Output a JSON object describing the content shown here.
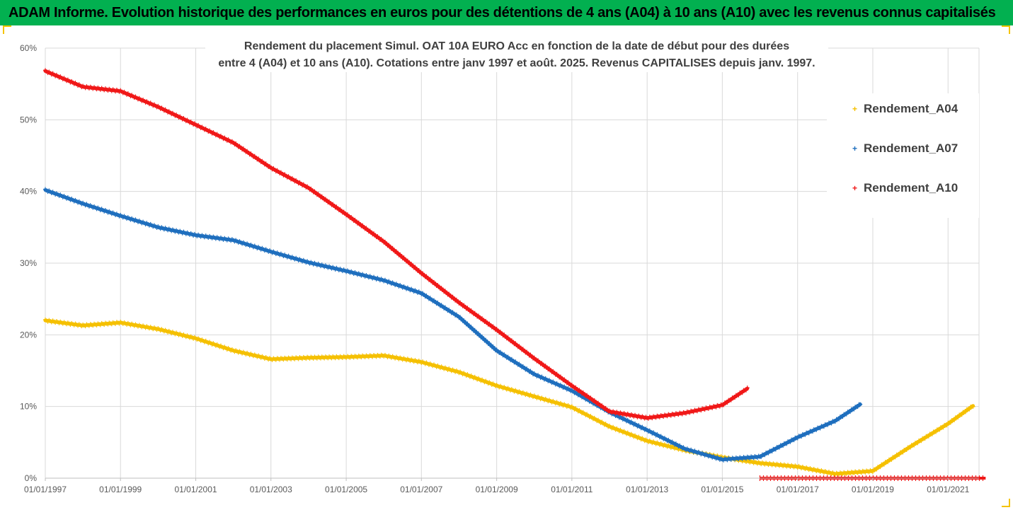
{
  "header": {
    "title": "ADAM Informe. Evolution historique des performances en euros pour des détentions de 4 ans (A04) à 10 ans (A10) avec les revenus connus capitalisés"
  },
  "colors": {
    "header_bg": "#02B050",
    "frame_accent": "#F5C400",
    "A04": "#F5C000",
    "A07": "#1F6FBE",
    "A10": "#F01818",
    "grid": "#D9D9D9"
  },
  "chart_data": {
    "type": "scatter",
    "title_line1": "Rendement du placement Simul. OAT 10A EURO Acc en fonction de la date de début pour des durées",
    "title_line2": "entre 4 (A04) et 10 ans (A10). Cotations entre janv 1997 et août. 2025. Revenus CAPITALISES depuis janv. 1997.",
    "xlabel": "",
    "ylabel": "",
    "x_range": [
      "1997-01-01",
      "2022-01-01"
    ],
    "ylim": [
      0,
      60
    ],
    "y_unit": "%",
    "y_ticks": [
      "0%",
      "10%",
      "20%",
      "30%",
      "40%",
      "50%",
      "60%"
    ],
    "x_ticks": [
      "01/01/1997",
      "01/01/1999",
      "01/01/2001",
      "01/01/2003",
      "01/01/2005",
      "01/01/2007",
      "01/01/2009",
      "01/01/2011",
      "01/01/2013",
      "01/01/2015",
      "01/01/2017",
      "01/01/2019",
      "01/01/2021"
    ],
    "grid": true,
    "legend_position": "right",
    "marker": "+",
    "series": [
      {
        "name": "Rendement_A04",
        "color_key": "A04",
        "points": [
          [
            "1997-01-01",
            22.0
          ],
          [
            "1998-01-01",
            21.3
          ],
          [
            "1999-01-01",
            21.7
          ],
          [
            "2000-01-01",
            20.8
          ],
          [
            "2001-01-01",
            19.5
          ],
          [
            "2002-01-01",
            17.8
          ],
          [
            "2003-01-01",
            16.6
          ],
          [
            "2004-01-01",
            16.8
          ],
          [
            "2005-01-01",
            16.9
          ],
          [
            "2006-01-01",
            17.1
          ],
          [
            "2007-01-01",
            16.2
          ],
          [
            "2008-01-01",
            14.8
          ],
          [
            "2009-01-01",
            12.9
          ],
          [
            "2010-01-01",
            11.4
          ],
          [
            "2011-01-01",
            9.9
          ],
          [
            "2012-01-01",
            7.2
          ],
          [
            "2013-01-01",
            5.2
          ],
          [
            "2014-01-01",
            3.9
          ],
          [
            "2015-01-01",
            2.9
          ],
          [
            "2016-01-01",
            2.1
          ],
          [
            "2017-01-01",
            1.6
          ],
          [
            "2018-01-01",
            0.6
          ],
          [
            "2019-01-01",
            1.0
          ],
          [
            "2020-01-01",
            4.4
          ],
          [
            "2021-01-01",
            7.6
          ],
          [
            "2021-09-01",
            10.1
          ]
        ]
      },
      {
        "name": "Rendement_A07",
        "color_key": "A07",
        "points": [
          [
            "1997-01-01",
            40.2
          ],
          [
            "1998-01-01",
            38.3
          ],
          [
            "1999-01-01",
            36.6
          ],
          [
            "2000-01-01",
            35.0
          ],
          [
            "2001-01-01",
            33.9
          ],
          [
            "2002-01-01",
            33.2
          ],
          [
            "2003-01-01",
            31.6
          ],
          [
            "2004-01-01",
            30.1
          ],
          [
            "2005-01-01",
            28.9
          ],
          [
            "2006-01-01",
            27.6
          ],
          [
            "2007-01-01",
            25.8
          ],
          [
            "2008-01-01",
            22.5
          ],
          [
            "2009-01-01",
            17.8
          ],
          [
            "2010-01-01",
            14.5
          ],
          [
            "2011-01-01",
            12.2
          ],
          [
            "2012-01-01",
            9.2
          ],
          [
            "2013-01-01",
            6.7
          ],
          [
            "2014-01-01",
            4.1
          ],
          [
            "2015-01-01",
            2.6
          ],
          [
            "2016-01-01",
            3.0
          ],
          [
            "2017-01-01",
            5.7
          ],
          [
            "2018-01-01",
            8.0
          ],
          [
            "2018-09-01",
            10.3
          ]
        ]
      },
      {
        "name": "Rendement_A10",
        "color_key": "A10",
        "points": [
          [
            "1997-01-01",
            56.8
          ],
          [
            "1998-01-01",
            54.6
          ],
          [
            "1999-01-01",
            54.0
          ],
          [
            "2000-01-01",
            51.8
          ],
          [
            "2001-01-01",
            49.3
          ],
          [
            "2002-01-01",
            46.8
          ],
          [
            "2003-01-01",
            43.3
          ],
          [
            "2004-01-01",
            40.5
          ],
          [
            "2005-01-01",
            36.8
          ],
          [
            "2006-01-01",
            33.0
          ],
          [
            "2007-01-01",
            28.6
          ],
          [
            "2008-01-01",
            24.5
          ],
          [
            "2009-01-01",
            20.7
          ],
          [
            "2010-01-01",
            16.7
          ],
          [
            "2011-01-01",
            12.9
          ],
          [
            "2012-01-01",
            9.3
          ],
          [
            "2013-01-01",
            8.4
          ],
          [
            "2014-01-01",
            9.1
          ],
          [
            "2015-01-01",
            10.2
          ],
          [
            "2015-09-01",
            12.5
          ]
        ],
        "zero_segment": [
          "2016-01-01",
          "2022-01-01"
        ]
      }
    ]
  }
}
